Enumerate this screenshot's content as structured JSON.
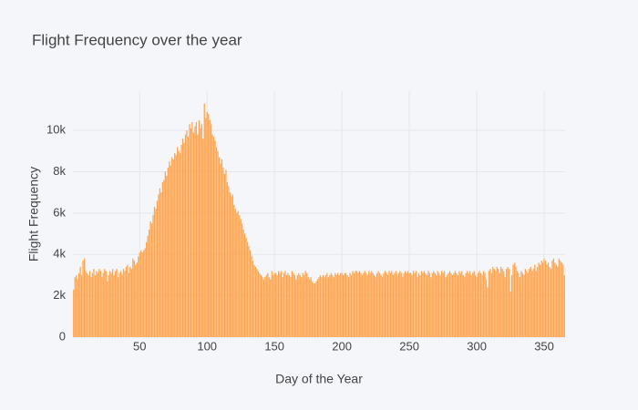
{
  "chart_data": {
    "type": "bar",
    "title": "Flight Frequency over the year",
    "x_label": "Day of the Year",
    "y_label": "Flight Frequency",
    "color": "#ffa044",
    "grid": true,
    "xlim": [
      0.5,
      365.5
    ],
    "xticks": [
      50,
      100,
      150,
      200,
      250,
      300,
      350
    ],
    "ylim": [
      0,
      11900
    ],
    "yticks": [
      0,
      {
        "value": 2000,
        "label": "2k"
      },
      {
        "value": 4000,
        "label": "4k"
      },
      {
        "value": 6000,
        "label": "6k"
      },
      {
        "value": 8000,
        "label": "8k"
      },
      {
        "value": 10000,
        "label": "10k"
      }
    ],
    "x": [
      1,
      2,
      3,
      4,
      5,
      6,
      7,
      8,
      9,
      10,
      11,
      12,
      13,
      14,
      15,
      16,
      17,
      18,
      19,
      20,
      21,
      22,
      23,
      24,
      25,
      26,
      27,
      28,
      29,
      30,
      31,
      32,
      33,
      34,
      35,
      36,
      37,
      38,
      39,
      40,
      41,
      42,
      43,
      44,
      45,
      46,
      47,
      48,
      49,
      50,
      51,
      52,
      53,
      54,
      55,
      56,
      57,
      58,
      59,
      60,
      61,
      62,
      63,
      64,
      65,
      66,
      67,
      68,
      69,
      70,
      71,
      72,
      73,
      74,
      75,
      76,
      77,
      78,
      79,
      80,
      81,
      82,
      83,
      84,
      85,
      86,
      87,
      88,
      89,
      90,
      91,
      92,
      93,
      94,
      95,
      96,
      97,
      98,
      99,
      100,
      101,
      102,
      103,
      104,
      105,
      106,
      107,
      108,
      109,
      110,
      111,
      112,
      113,
      114,
      115,
      116,
      117,
      118,
      119,
      120,
      121,
      122,
      123,
      124,
      125,
      126,
      127,
      128,
      129,
      130,
      131,
      132,
      133,
      134,
      135,
      136,
      137,
      138,
      139,
      140,
      141,
      142,
      143,
      144,
      145,
      146,
      147,
      148,
      149,
      150,
      151,
      152,
      153,
      154,
      155,
      156,
      157,
      158,
      159,
      160,
      161,
      162,
      163,
      164,
      165,
      166,
      167,
      168,
      169,
      170,
      171,
      172,
      173,
      174,
      175,
      176,
      177,
      178,
      179,
      180,
      181,
      182,
      183,
      184,
      185,
      186,
      187,
      188,
      189,
      190,
      191,
      192,
      193,
      194,
      195,
      196,
      197,
      198,
      199,
      200,
      201,
      202,
      203,
      204,
      205,
      206,
      207,
      208,
      209,
      210,
      211,
      212,
      213,
      214,
      215,
      216,
      217,
      218,
      219,
      220,
      221,
      222,
      223,
      224,
      225,
      226,
      227,
      228,
      229,
      230,
      231,
      232,
      233,
      234,
      235,
      236,
      237,
      238,
      239,
      240,
      241,
      242,
      243,
      244,
      245,
      246,
      247,
      248,
      249,
      250,
      251,
      252,
      253,
      254,
      255,
      256,
      257,
      258,
      259,
      260,
      261,
      262,
      263,
      264,
      265,
      266,
      267,
      268,
      269,
      270,
      271,
      272,
      273,
      274,
      275,
      276,
      277,
      278,
      279,
      280,
      281,
      282,
      283,
      284,
      285,
      286,
      287,
      288,
      289,
      290,
      291,
      292,
      293,
      294,
      295,
      296,
      297,
      298,
      299,
      300,
      301,
      302,
      303,
      304,
      305,
      306,
      307,
      308,
      309,
      310,
      311,
      312,
      313,
      314,
      315,
      316,
      317,
      318,
      319,
      320,
      321,
      322,
      323,
      324,
      325,
      326,
      327,
      328,
      329,
      330,
      331,
      332,
      333,
      334,
      335,
      336,
      337,
      338,
      339,
      340,
      341,
      342,
      343,
      344,
      345,
      346,
      347,
      348,
      349,
      350,
      351,
      352,
      353,
      354,
      355,
      356,
      357,
      358,
      359,
      360,
      361,
      362,
      363,
      364,
      365
    ],
    "values": [
      2300,
      2900,
      3000,
      2800,
      3100,
      3400,
      3000,
      3700,
      3800,
      3200,
      3100,
      3000,
      3200,
      2900,
      3100,
      3300,
      3000,
      3200,
      3100,
      3300,
      3200,
      2900,
      3100,
      3300,
      3200,
      2700,
      3000,
      3200,
      3100,
      3300,
      3000,
      3200,
      3300,
      2900,
      3100,
      3200,
      3000,
      3300,
      3200,
      3400,
      3500,
      3100,
      3400,
      3300,
      3800,
      3700,
      3500,
      3600,
      3900,
      4100,
      4200,
      4100,
      4200,
      4300,
      4600,
      4900,
      5200,
      5600,
      5500,
      5900,
      6300,
      6200,
      6600,
      6900,
      7200,
      7000,
      7500,
      7600,
      8000,
      7800,
      8200,
      8500,
      8300,
      8700,
      8600,
      8900,
      8800,
      9200,
      9000,
      8900,
      9300,
      9600,
      9400,
      9800,
      10000,
      9700,
      10300,
      10100,
      10400,
      9900,
      10200,
      10400,
      9800,
      10500,
      10100,
      10300,
      9600,
      11300,
      10600,
      10900,
      10800,
      10500,
      10300,
      9800,
      9700,
      9500,
      9200,
      9000,
      8700,
      8400,
      8600,
      8200,
      7900,
      8100,
      7500,
      7300,
      7000,
      6800,
      6900,
      6400,
      6200,
      6000,
      6100,
      5900,
      5700,
      5500,
      5200,
      5000,
      4800,
      4600,
      4400,
      4200,
      3900,
      3700,
      3500,
      3400,
      3300,
      3200,
      3100,
      3000,
      2900,
      2800,
      2900,
      3000,
      3100,
      2900,
      2800,
      3200,
      3000,
      3100,
      3100,
      3000,
      3200,
      3100,
      3200,
      2900,
      3100,
      3200,
      3000,
      3100,
      3000,
      2900,
      3200,
      3100,
      3000,
      2800,
      3000,
      3100,
      3000,
      2900,
      3100,
      3000,
      3200,
      3100,
      2900,
      2800,
      2900,
      2700,
      2600,
      2600,
      2700,
      2800,
      2900,
      3000,
      2900,
      3000,
      2900,
      3000,
      3100,
      2900,
      3000,
      3100,
      3000,
      2900,
      3100,
      3000,
      3100,
      3000,
      3100,
      3100,
      3000,
      3100,
      3100,
      3000,
      2900,
      3100,
      3000,
      3200,
      3100,
      3200,
      3200,
      3100,
      3200,
      3100,
      3000,
      3100,
      3200,
      3100,
      3000,
      3200,
      3100,
      3200,
      3100,
      3000,
      2900,
      3100,
      3200,
      3100,
      3000,
      2900,
      3100,
      3200,
      3100,
      3000,
      3200,
      3100,
      3200,
      3000,
      3100,
      3200,
      3000,
      3100,
      3200,
      3100,
      2900,
      3100,
      3200,
      3100,
      3200,
      3100,
      3100,
      3000,
      3200,
      3100,
      3200,
      2900,
      3100,
      3000,
      3200,
      3100,
      3200,
      3100,
      3000,
      3200,
      3100,
      2900,
      3100,
      3200,
      3100,
      3000,
      3200,
      3100,
      3000,
      3200,
      3100,
      3200,
      2900,
      3000,
      3100,
      3200,
      3100,
      3000,
      3100,
      3200,
      3100,
      3000,
      3200,
      3100,
      3200,
      3000,
      2900,
      3100,
      3200,
      3100,
      3200,
      3000,
      3100,
      3200,
      3000,
      2900,
      3100,
      3200,
      3100,
      3000,
      3200,
      3100,
      2800,
      2400,
      3200,
      3300,
      3100,
      3400,
      3300,
      3200,
      3400,
      3300,
      3100,
      3400,
      3300,
      3200,
      2900,
      3300,
      3400,
      3300,
      2200,
      3000,
      3500,
      3600,
      3400,
      3200,
      3100,
      2900,
      3200,
      3100,
      3000,
      3300,
      3200,
      3100,
      3300,
      3400,
      3200,
      3300,
      3500,
      3200,
      3400,
      3600,
      3500,
      3700,
      3600,
      3800,
      3700,
      3500,
      3600,
      3400,
      3300,
      3700,
      3800,
      3600,
      3500,
      3400,
      3800,
      3700,
      3600,
      3500,
      3000
    ]
  }
}
